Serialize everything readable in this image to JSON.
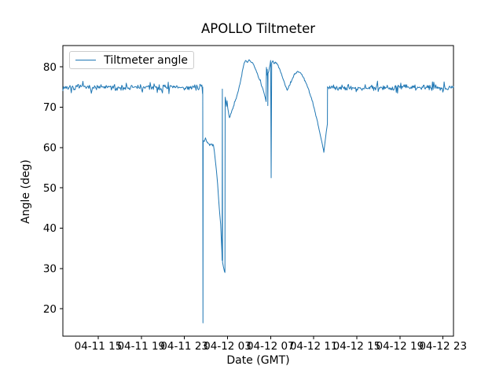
{
  "chart": {
    "title": "APOLLO Tiltmeter",
    "xlabel": "Date (GMT)",
    "ylabel": "Angle (deg)",
    "legend_label": "Tiltmeter angle",
    "line_color": "#1f77b4"
  },
  "chart_data": {
    "type": "line",
    "title": "APOLLO Tiltmeter",
    "xlabel": "Date (GMT)",
    "ylabel": "Angle (deg)",
    "legend": [
      "Tiltmeter angle"
    ],
    "legend_position": "upper left",
    "grid": false,
    "line_color": "#1f77b4",
    "x_unit": "hours since 04-11 00:00 GMT",
    "xlim": [
      11.72,
      47.97
    ],
    "ylim": [
      13.2,
      85.3
    ],
    "yticks": [
      20,
      30,
      40,
      50,
      60,
      70,
      80
    ],
    "xticks": [
      {
        "h": 15,
        "label": "04-11 15"
      },
      {
        "h": 19,
        "label": "04-11 19"
      },
      {
        "h": 23,
        "label": "04-11 23"
      },
      {
        "h": 27,
        "label": "04-12 03"
      },
      {
        "h": 31,
        "label": "04-12 07"
      },
      {
        "h": 35,
        "label": "04-12 11"
      },
      {
        "h": 39,
        "label": "04-12 15"
      },
      {
        "h": 43,
        "label": "04-12 19"
      },
      {
        "h": 47,
        "label": "04-12 23"
      }
    ],
    "series": [
      {
        "name": "Tiltmeter angle",
        "color": "#1f77b4",
        "baseline_level": 74.9,
        "noise_amplitude": 0.6,
        "flat_segments": [
          {
            "from": 11.72,
            "to": 24.68,
            "level": 74.9
          },
          {
            "from": 36.3,
            "to": 47.97,
            "level": 74.9
          }
        ],
        "event_points": [
          [
            24.7,
            75.0
          ],
          [
            24.72,
            16.5
          ],
          [
            24.74,
            61.8
          ],
          [
            24.85,
            61.5
          ],
          [
            24.95,
            62.4
          ],
          [
            25.05,
            61.6
          ],
          [
            25.2,
            61.0
          ],
          [
            25.45,
            60.8
          ],
          [
            25.7,
            60.5
          ],
          [
            25.78,
            59.0
          ],
          [
            25.88,
            56.5
          ],
          [
            25.98,
            54.0
          ],
          [
            26.08,
            51.0
          ],
          [
            26.18,
            47.0
          ],
          [
            26.28,
            43.5
          ],
          [
            26.36,
            41.0
          ],
          [
            26.42,
            37.5
          ],
          [
            26.48,
            34.0
          ],
          [
            26.5,
            32.0
          ],
          [
            26.52,
            74.5
          ],
          [
            26.54,
            31.5
          ],
          [
            26.62,
            30.4
          ],
          [
            26.72,
            29.2
          ],
          [
            26.76,
            29.0
          ],
          [
            26.78,
            72.5
          ],
          [
            26.84,
            71.6
          ],
          [
            26.9,
            70.2
          ],
          [
            26.96,
            71.6
          ],
          [
            27.02,
            69.8
          ],
          [
            27.08,
            68.9
          ],
          [
            27.18,
            67.4
          ],
          [
            27.35,
            68.6
          ],
          [
            27.55,
            70.2
          ],
          [
            27.75,
            71.9
          ],
          [
            27.95,
            73.6
          ],
          [
            28.15,
            75.7
          ],
          [
            28.32,
            77.8
          ],
          [
            28.45,
            79.8
          ],
          [
            28.55,
            81.0
          ],
          [
            28.7,
            81.6
          ],
          [
            28.85,
            81.1
          ],
          [
            29.0,
            81.8
          ],
          [
            29.15,
            81.3
          ],
          [
            29.3,
            81.1
          ],
          [
            29.44,
            80.5
          ],
          [
            29.6,
            79.4
          ],
          [
            29.8,
            78.1
          ],
          [
            30.0,
            76.7
          ],
          [
            30.2,
            75.1
          ],
          [
            30.38,
            73.6
          ],
          [
            30.5,
            72.4
          ],
          [
            30.58,
            71.4
          ],
          [
            30.61,
            79.9
          ],
          [
            30.65,
            78.0
          ],
          [
            30.68,
            79.4
          ],
          [
            30.72,
            76.8
          ],
          [
            30.74,
            70.4
          ],
          [
            30.76,
            78.4
          ],
          [
            30.83,
            78.9
          ],
          [
            30.93,
            80.3
          ],
          [
            31.0,
            81.6
          ],
          [
            31.05,
            52.5
          ],
          [
            31.1,
            81.0
          ],
          [
            31.2,
            81.5
          ],
          [
            31.32,
            80.8
          ],
          [
            31.45,
            81.2
          ],
          [
            31.6,
            80.7
          ],
          [
            31.8,
            79.7
          ],
          [
            32.0,
            78.3
          ],
          [
            32.2,
            76.7
          ],
          [
            32.4,
            75.1
          ],
          [
            32.55,
            74.2
          ],
          [
            32.75,
            75.4
          ],
          [
            33.0,
            76.9
          ],
          [
            33.25,
            78.2
          ],
          [
            33.5,
            78.9
          ],
          [
            33.65,
            78.7
          ],
          [
            33.85,
            78.2
          ],
          [
            34.05,
            77.3
          ],
          [
            34.25,
            76.2
          ],
          [
            34.45,
            74.9
          ],
          [
            34.65,
            73.3
          ],
          [
            34.85,
            71.6
          ],
          [
            35.05,
            69.7
          ],
          [
            35.25,
            67.5
          ],
          [
            35.45,
            65.1
          ],
          [
            35.65,
            62.6
          ],
          [
            35.8,
            60.8
          ],
          [
            35.9,
            59.5
          ],
          [
            35.94,
            58.8
          ],
          [
            36.02,
            60.7
          ],
          [
            36.12,
            62.9
          ],
          [
            36.22,
            64.9
          ],
          [
            36.27,
            65.9
          ],
          [
            36.28,
            75.1
          ]
        ]
      }
    ]
  }
}
